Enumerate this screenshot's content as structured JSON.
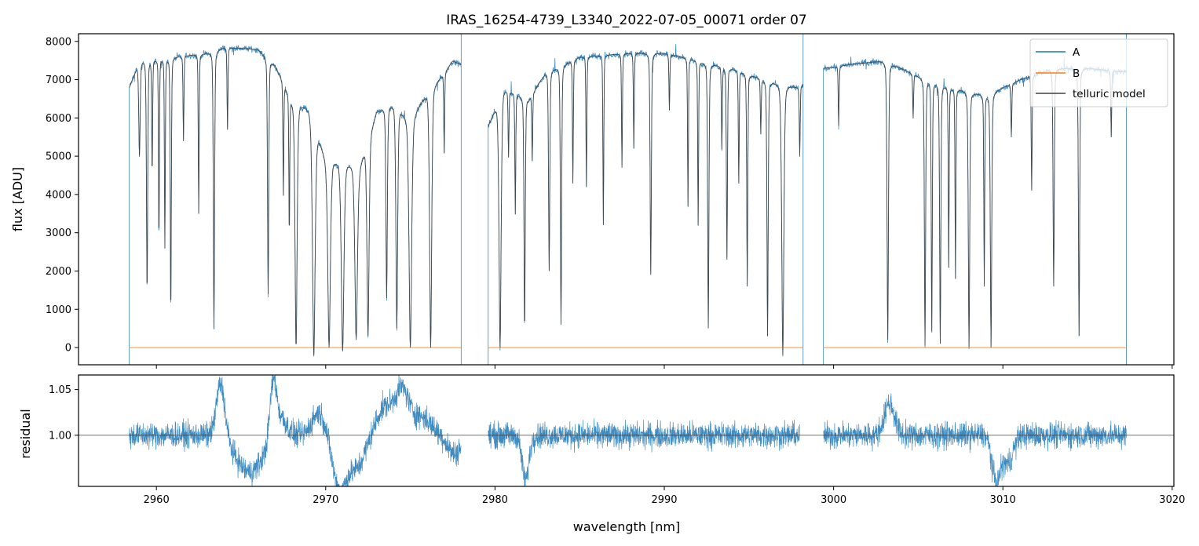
{
  "chart_data": [
    {
      "type": "line",
      "title": "IRAS_16254-4739_L3340_2022-07-05_00071  order 07",
      "xlabel": "",
      "ylabel": "flux [ADU]",
      "xlim": [
        2955.4,
        3020.1
      ],
      "ylim": [
        -450,
        8200
      ],
      "yticks": [
        0,
        1000,
        2000,
        3000,
        4000,
        5000,
        6000,
        7000,
        8000
      ],
      "ytick_labels": [
        "0",
        "1000",
        "2000",
        "3000",
        "4000",
        "5000",
        "6000",
        "7000",
        "8000"
      ],
      "segments": [
        [
          2958.4,
          2978.0
        ],
        [
          2979.6,
          2998.2
        ],
        [
          2999.4,
          3017.3
        ]
      ],
      "series": [
        {
          "name": "A",
          "color": "#1f77b4"
        },
        {
          "name": "B",
          "color": "#ff7f0e",
          "value": 0
        },
        {
          "name": "telluric model",
          "color": "#404040"
        }
      ],
      "continuum": [
        [
          2958.4,
          6800
        ],
        [
          2959,
          7500
        ],
        [
          2961,
          7600
        ],
        [
          2963,
          7700
        ],
        [
          2964,
          7850
        ],
        [
          2966,
          7800
        ],
        [
          2967,
          7400
        ],
        [
          2968,
          6500
        ],
        [
          2969,
          6300
        ],
        [
          2970,
          5000
        ],
        [
          2972,
          4800
        ],
        [
          2973,
          6200
        ],
        [
          2974,
          6400
        ],
        [
          2975,
          6000
        ],
        [
          2976,
          6700
        ],
        [
          2977,
          7200
        ],
        [
          2977.5,
          7500
        ],
        [
          2978,
          7400
        ],
        [
          2979.6,
          5800
        ],
        [
          2980.5,
          6800
        ],
        [
          2982,
          6500
        ],
        [
          2983,
          7200
        ],
        [
          2985,
          7600
        ],
        [
          2988,
          7700
        ],
        [
          2990,
          7700
        ],
        [
          2992,
          7500
        ],
        [
          2994,
          7300
        ],
        [
          2996,
          7000
        ],
        [
          2998,
          6800
        ],
        [
          2998.2,
          6900
        ],
        [
          2999.4,
          7300
        ],
        [
          3001,
          7400
        ],
        [
          3003,
          7500
        ],
        [
          3005,
          7100
        ],
        [
          3007,
          6800
        ],
        [
          3009,
          6600
        ],
        [
          3011,
          7000
        ],
        [
          3013,
          7300
        ],
        [
          3015,
          7300
        ],
        [
          3017.3,
          7200
        ]
      ],
      "absorption_lines": [
        [
          2959.0,
          5000,
          0.08
        ],
        [
          2959.45,
          1400,
          0.07
        ],
        [
          2959.75,
          4500,
          0.05
        ],
        [
          2960.15,
          2700,
          0.05
        ],
        [
          2960.5,
          2600,
          0.05
        ],
        [
          2960.85,
          800,
          0.06
        ],
        [
          2961.6,
          5400,
          0.05
        ],
        [
          2962.5,
          3500,
          0.05
        ],
        [
          2963.4,
          500,
          0.07
        ],
        [
          2964.2,
          5700,
          0.05
        ],
        [
          2966.6,
          1400,
          0.07
        ],
        [
          2967.5,
          4000,
          0.05
        ],
        [
          2967.85,
          2900,
          0.05
        ],
        [
          2968.25,
          0,
          0.12
        ],
        [
          2969.3,
          -200,
          0.15
        ],
        [
          2970.2,
          0,
          0.15
        ],
        [
          2971.0,
          -100,
          0.15
        ],
        [
          2971.8,
          200,
          0.15
        ],
        [
          2972.5,
          300,
          0.12
        ],
        [
          2973.6,
          1300,
          0.08
        ],
        [
          2974.2,
          500,
          0.1
        ],
        [
          2975.0,
          0,
          0.15
        ],
        [
          2976.2,
          0,
          0.12
        ],
        [
          2977.0,
          5100,
          0.05
        ],
        [
          2980.3,
          0,
          0.12
        ],
        [
          2980.8,
          5000,
          0.05
        ],
        [
          2981.2,
          3500,
          0.05
        ],
        [
          2981.75,
          400,
          0.07
        ],
        [
          2982.2,
          4900,
          0.05
        ],
        [
          2983.2,
          2000,
          0.07
        ],
        [
          2983.9,
          600,
          0.07
        ],
        [
          2984.6,
          4300,
          0.05
        ],
        [
          2985.4,
          4200,
          0.05
        ],
        [
          2986.4,
          3200,
          0.05
        ],
        [
          2987.5,
          4700,
          0.05
        ],
        [
          2988.2,
          5200,
          0.05
        ],
        [
          2989.2,
          1900,
          0.07
        ],
        [
          2990.3,
          6200,
          0.05
        ],
        [
          2991.4,
          3700,
          0.05
        ],
        [
          2992.0,
          3200,
          0.05
        ],
        [
          2992.6,
          500,
          0.07
        ],
        [
          2993.4,
          5200,
          0.05
        ],
        [
          2993.7,
          2300,
          0.06
        ],
        [
          2994.4,
          4300,
          0.05
        ],
        [
          2994.9,
          1600,
          0.06
        ],
        [
          2995.7,
          5600,
          0.05
        ],
        [
          2996.1,
          300,
          0.07
        ],
        [
          2997.0,
          -300,
          0.12
        ],
        [
          2998.0,
          5000,
          0.05
        ],
        [
          3000.3,
          5800,
          0.05
        ],
        [
          3003.2,
          200,
          0.08
        ],
        [
          3004.7,
          6000,
          0.05
        ],
        [
          3005.4,
          50,
          0.07
        ],
        [
          3005.8,
          400,
          0.06
        ],
        [
          3006.3,
          100,
          0.07
        ],
        [
          3006.8,
          2100,
          0.05
        ],
        [
          3007.2,
          1800,
          0.05
        ],
        [
          3008.0,
          0,
          0.08
        ],
        [
          3008.9,
          1600,
          0.05
        ],
        [
          3009.3,
          0,
          0.08
        ],
        [
          3010.5,
          5500,
          0.05
        ],
        [
          3011.7,
          4100,
          0.05
        ],
        [
          3013.0,
          1600,
          0.07
        ],
        [
          3014.5,
          300,
          0.07
        ],
        [
          3016.4,
          5500,
          0.05
        ]
      ]
    },
    {
      "type": "line",
      "title": "",
      "xlabel": "wavelength [nm]",
      "ylabel": "residual",
      "xlim": [
        2955.4,
        3020.1
      ],
      "ylim": [
        0.944,
        1.066
      ],
      "reference_line": 1.0,
      "yticks": [
        1.0,
        1.05
      ],
      "ytick_labels": [
        "1.00",
        "1.05"
      ],
      "xticks": [
        2960,
        2970,
        2980,
        2990,
        3000,
        3010,
        3020
      ],
      "xtick_labels": [
        "2960",
        "2970",
        "2980",
        "2990",
        "3000",
        "3010",
        "3020"
      ],
      "series": [
        {
          "name": "residual",
          "color": "#1f77b4"
        }
      ],
      "noise_amplitude": 0.012,
      "excursions": [
        [
          2963.8,
          0.06,
          0.25
        ],
        [
          2965.5,
          -0.04,
          0.8
        ],
        [
          2966.9,
          0.065,
          0.2
        ],
        [
          2967.4,
          0.02,
          0.3
        ],
        [
          2969.6,
          0.025,
          0.4
        ],
        [
          2970.8,
          -0.055,
          0.4
        ],
        [
          2971.8,
          -0.035,
          0.5
        ],
        [
          2973.5,
          0.03,
          0.5
        ],
        [
          2974.5,
          0.045,
          0.4
        ],
        [
          2975.6,
          0.02,
          0.6
        ],
        [
          2977.6,
          -0.02,
          0.4
        ],
        [
          2981.8,
          -0.05,
          0.2
        ],
        [
          3003.3,
          0.035,
          0.3
        ],
        [
          3009.6,
          -0.05,
          0.25
        ],
        [
          3010.3,
          -0.03,
          0.3
        ]
      ]
    }
  ],
  "legend": {
    "placement": "top-right",
    "entries": [
      {
        "label": "A",
        "color": "#1f77b4"
      },
      {
        "label": "B",
        "color": "#ff7f0e"
      },
      {
        "label": "telluric model",
        "color": "#404040"
      }
    ]
  }
}
